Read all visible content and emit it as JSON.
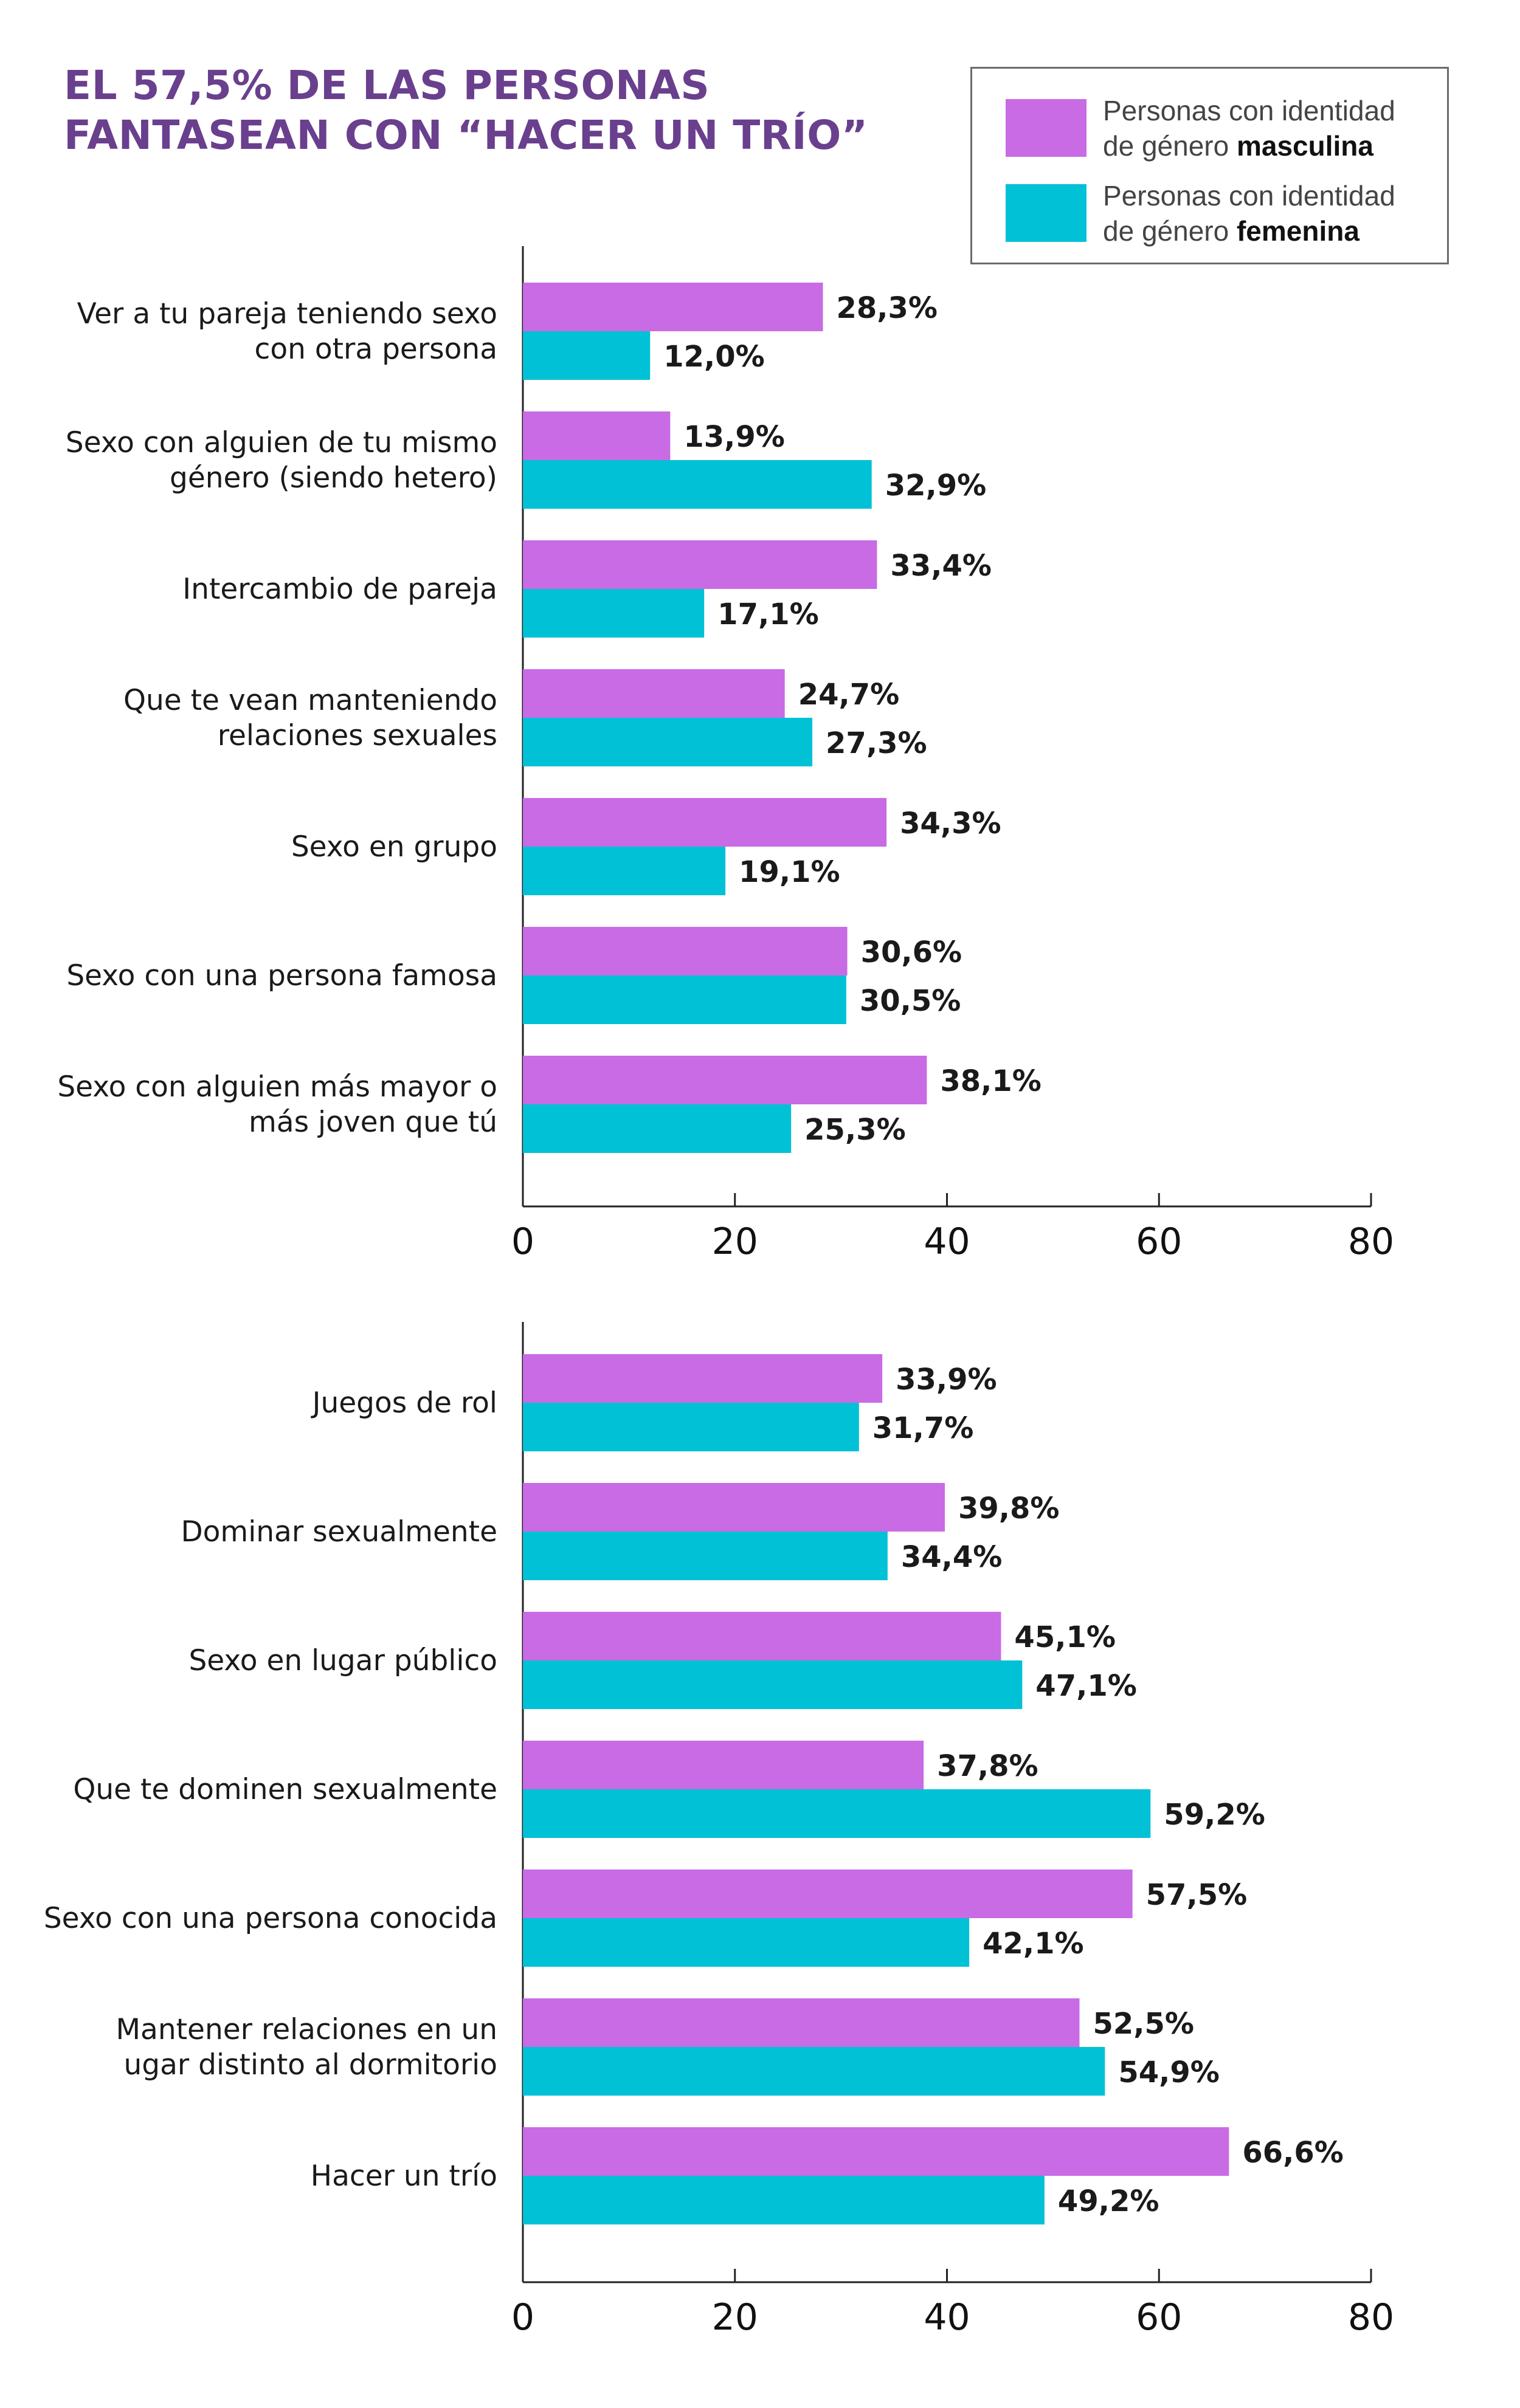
{
  "title": {
    "line1": "EL 57,5% DE LAS PERSONAS",
    "line2": "FANTASEAN CON “HACER UN TRÍO”"
  },
  "legend": {
    "masculine": {
      "line1": "Personas con identidad",
      "line2_prefix": "de género ",
      "line2_bold": "masculina"
    },
    "feminine": {
      "line1": "Personas con identidad",
      "line2_prefix": "de género ",
      "line2_bold": "femenina"
    }
  },
  "colors": {
    "masculine": "#c86be4",
    "feminine": "#00c1d5",
    "axis": "#222222",
    "text": "#1a1a1a"
  },
  "chart_data": [
    {
      "type": "bar",
      "orientation": "horizontal",
      "xlim": [
        0,
        80
      ],
      "xticks": [
        0,
        20,
        40,
        60,
        80
      ],
      "categories": [
        [
          "Ver a tu pareja teniendo sexo",
          "con otra persona"
        ],
        [
          "Sexo con alguien de tu mismo",
          "género (siendo hetero)"
        ],
        [
          "Intercambio de pareja"
        ],
        [
          "Que te vean manteniendo",
          "relaciones sexuales"
        ],
        [
          "Sexo en grupo"
        ],
        [
          "Sexo con una persona famosa"
        ],
        [
          "Sexo con alguien más mayor o",
          "más joven que tú"
        ]
      ],
      "series": [
        {
          "name": "Personas con identidad de género masculina",
          "values": [
            28.3,
            13.9,
            33.4,
            24.7,
            34.3,
            30.6,
            38.1
          ],
          "labels": [
            "28,3%",
            "13,9%",
            "33,4%",
            "24,7%",
            "34,3%",
            "30,6%",
            "38,1%"
          ]
        },
        {
          "name": "Personas con identidad de género femenina",
          "values": [
            12.0,
            32.9,
            17.1,
            27.3,
            19.1,
            30.5,
            25.3
          ],
          "labels": [
            "12,0%",
            "32,9%",
            "17,1%",
            "27,3%",
            "19,1%",
            "30,5%",
            "25,3%"
          ]
        }
      ]
    },
    {
      "type": "bar",
      "orientation": "horizontal",
      "xlim": [
        0,
        80
      ],
      "xticks": [
        0,
        20,
        40,
        60,
        80
      ],
      "categories": [
        [
          "Juegos de rol"
        ],
        [
          "Dominar sexualmente"
        ],
        [
          "Sexo en lugar público"
        ],
        [
          "Que te dominen sexualmente"
        ],
        [
          "Sexo con una persona conocida"
        ],
        [
          "Mantener relaciones en un",
          "ugar distinto al dormitorio"
        ],
        [
          "Hacer un trío"
        ]
      ],
      "series": [
        {
          "name": "Personas con identidad de género masculina",
          "values": [
            33.9,
            39.8,
            45.1,
            37.8,
            57.5,
            52.5,
            66.6
          ],
          "labels": [
            "33,9%",
            "39,8%",
            "45,1%",
            "37,8%",
            "57,5%",
            "52,5%",
            "66,6%"
          ]
        },
        {
          "name": "Personas con identidad de género femenina",
          "values": [
            31.7,
            34.4,
            47.1,
            59.2,
            42.1,
            54.9,
            49.2
          ],
          "labels": [
            "31,7%",
            "34,4%",
            "47,1%",
            "59,2%",
            "42,1%",
            "54,9%",
            "49,2%"
          ]
        }
      ]
    }
  ]
}
